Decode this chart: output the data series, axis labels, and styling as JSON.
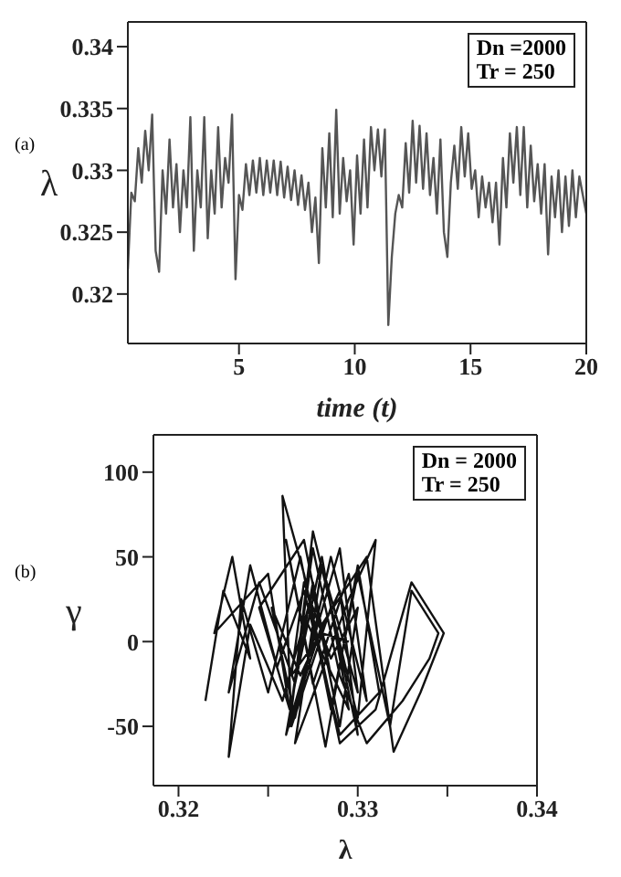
{
  "chart_data": [
    {
      "type": "line",
      "xlabel": "time (t)",
      "ylabel": "λ",
      "annotations": [
        "(a)",
        "Dn =2000",
        "Tr = 250"
      ],
      "xlim": [
        0.2,
        20
      ],
      "xticks": [
        5,
        10,
        15,
        20
      ],
      "ylim": [
        0.316,
        0.342
      ],
      "yticks": [
        0.32,
        0.325,
        0.33,
        0.335,
        0.34
      ],
      "marker": "none",
      "line_style": "solid",
      "x": [
        0.2,
        0.35,
        0.5,
        0.65,
        0.8,
        0.95,
        1.1,
        1.25,
        1.4,
        1.55,
        1.7,
        1.85,
        2.0,
        2.15,
        2.3,
        2.45,
        2.6,
        2.75,
        2.9,
        3.05,
        3.2,
        3.35,
        3.5,
        3.65,
        3.8,
        3.95,
        4.1,
        4.25,
        4.4,
        4.55,
        4.7,
        4.85,
        5.0,
        5.15,
        5.3,
        5.45,
        5.6,
        5.75,
        5.9,
        6.05,
        6.2,
        6.35,
        6.5,
        6.65,
        6.8,
        6.95,
        7.1,
        7.25,
        7.4,
        7.55,
        7.7,
        7.85,
        8.0,
        8.15,
        8.3,
        8.45,
        8.6,
        8.75,
        8.9,
        9.05,
        9.2,
        9.35,
        9.5,
        9.65,
        9.8,
        9.95,
        10.1,
        10.25,
        10.4,
        10.55,
        10.7,
        10.85,
        11.0,
        11.15,
        11.3,
        11.45,
        11.6,
        11.75,
        11.9,
        12.05,
        12.2,
        12.35,
        12.5,
        12.65,
        12.8,
        12.95,
        13.1,
        13.25,
        13.4,
        13.55,
        13.7,
        13.85,
        14.0,
        14.15,
        14.3,
        14.45,
        14.6,
        14.75,
        14.9,
        15.05,
        15.2,
        15.35,
        15.5,
        15.65,
        15.8,
        15.95,
        16.1,
        16.25,
        16.4,
        16.55,
        16.7,
        16.85,
        17.0,
        17.15,
        17.3,
        17.45,
        17.6,
        17.75,
        17.9,
        18.05,
        18.2,
        18.35,
        18.5,
        18.65,
        18.8,
        18.95,
        19.1,
        19.25,
        19.4,
        19.55,
        19.7,
        19.85,
        20.0
      ],
      "series": [
        {
          "color": "#555555",
          "values": [
            0.322,
            0.3282,
            0.3275,
            0.3318,
            0.329,
            0.3332,
            0.33,
            0.3345,
            0.3235,
            0.3218,
            0.33,
            0.3265,
            0.3325,
            0.327,
            0.3305,
            0.325,
            0.33,
            0.327,
            0.3343,
            0.3235,
            0.33,
            0.327,
            0.3343,
            0.3245,
            0.33,
            0.3265,
            0.3335,
            0.327,
            0.331,
            0.329,
            0.3345,
            0.3212,
            0.328,
            0.3268,
            0.3305,
            0.328,
            0.3308,
            0.3282,
            0.331,
            0.328,
            0.3308,
            0.3282,
            0.3308,
            0.328,
            0.3307,
            0.3278,
            0.3303,
            0.3276,
            0.33,
            0.3272,
            0.3296,
            0.3268,
            0.329,
            0.325,
            0.3278,
            0.3225,
            0.3318,
            0.327,
            0.333,
            0.3262,
            0.3349,
            0.3265,
            0.331,
            0.3275,
            0.33,
            0.324,
            0.3312,
            0.3265,
            0.3325,
            0.327,
            0.3335,
            0.33,
            0.3333,
            0.3295,
            0.3333,
            0.3175,
            0.323,
            0.3265,
            0.328,
            0.327,
            0.3322,
            0.3282,
            0.334,
            0.329,
            0.3336,
            0.3285,
            0.333,
            0.328,
            0.331,
            0.3265,
            0.3325,
            0.325,
            0.323,
            0.329,
            0.332,
            0.3285,
            0.3335,
            0.3295,
            0.333,
            0.3285,
            0.33,
            0.3262,
            0.3295,
            0.327,
            0.329,
            0.3258,
            0.329,
            0.324,
            0.331,
            0.327,
            0.333,
            0.329,
            0.3335,
            0.328,
            0.3335,
            0.327,
            0.332,
            0.3275,
            0.3305,
            0.3265,
            0.3305,
            0.3232,
            0.3295,
            0.3262,
            0.33,
            0.325,
            0.3295,
            0.3255,
            0.33,
            0.3262,
            0.3295,
            0.328,
            0.3265
          ]
        }
      ]
    },
    {
      "type": "line",
      "xlabel": "λ",
      "ylabel": "γ",
      "annotations": [
        "(b)",
        "Dn = 2000",
        "Tr = 250"
      ],
      "xlim": [
        0.3186,
        0.34
      ],
      "xticks": [
        0.32,
        {
          "value": 0.325,
          "label": null
        },
        0.33,
        {
          "value": 0.335,
          "label": null
        },
        0.34
      ],
      "ylim": [
        -85,
        122
      ],
      "yticks": [
        -50,
        0,
        50,
        100
      ],
      "marker": "none",
      "line_style": "solid",
      "series": [
        {
          "color": "#111111",
          "x": [
            0.3215,
            0.3225,
            0.324,
            0.323,
            0.322,
            0.325,
            0.3262,
            0.3245,
            0.327,
            0.3285,
            0.3275,
            0.326,
            0.329,
            0.33,
            0.328,
            0.3265,
            0.3295,
            0.331,
            0.33,
            0.3275,
            0.3262,
            0.328,
            0.3305,
            0.332,
            0.3335,
            0.3348,
            0.333,
            0.331,
            0.329,
            0.327,
            0.3258,
            0.3263,
            0.3285,
            0.33,
            0.329,
            0.3268,
            0.3252,
            0.3265,
            0.3285,
            0.3305,
            0.3295,
            0.3275,
            0.326,
            0.3282,
            0.33,
            0.3312,
            0.329,
            0.327,
            0.3255,
            0.324,
            0.3228,
            0.3245,
            0.3265,
            0.328,
            0.3295,
            0.327,
            0.3262,
            0.3275,
            0.329,
            0.3305,
            0.3325,
            0.334,
            0.3345,
            0.333,
            0.3318,
            0.33,
            0.3285,
            0.3268,
            0.325,
            0.3235,
            0.3228,
            0.324,
            0.3258,
            0.3275,
            0.329,
            0.33,
            0.3285,
            0.327,
            0.3263,
            0.328,
            0.3295
          ],
          "values": [
            -35,
            30,
            -10,
            50,
            5,
            40,
            -40,
            20,
            60,
            -20,
            35,
            -55,
            55,
            -30,
            45,
            -60,
            25,
            60,
            -45,
            65,
            -50,
            10,
            50,
            -65,
            -30,
            5,
            35,
            -40,
            -60,
            40,
            86,
            -50,
            20,
            -55,
            30,
            -20,
            20,
            -45,
            50,
            -35,
            40,
            -25,
            60,
            -62,
            45,
            -30,
            -55,
            30,
            -15,
            45,
            -30,
            35,
            -25,
            50,
            -40,
            15,
            -45,
            55,
            -20,
            -60,
            -35,
            -10,
            5,
            30,
            -50,
            40,
            -40,
            50,
            -30,
            25,
            -68,
            10,
            -35,
            30,
            -50,
            20,
            -10,
            35,
            -20,
            5,
            0
          ]
        }
      ]
    }
  ]
}
